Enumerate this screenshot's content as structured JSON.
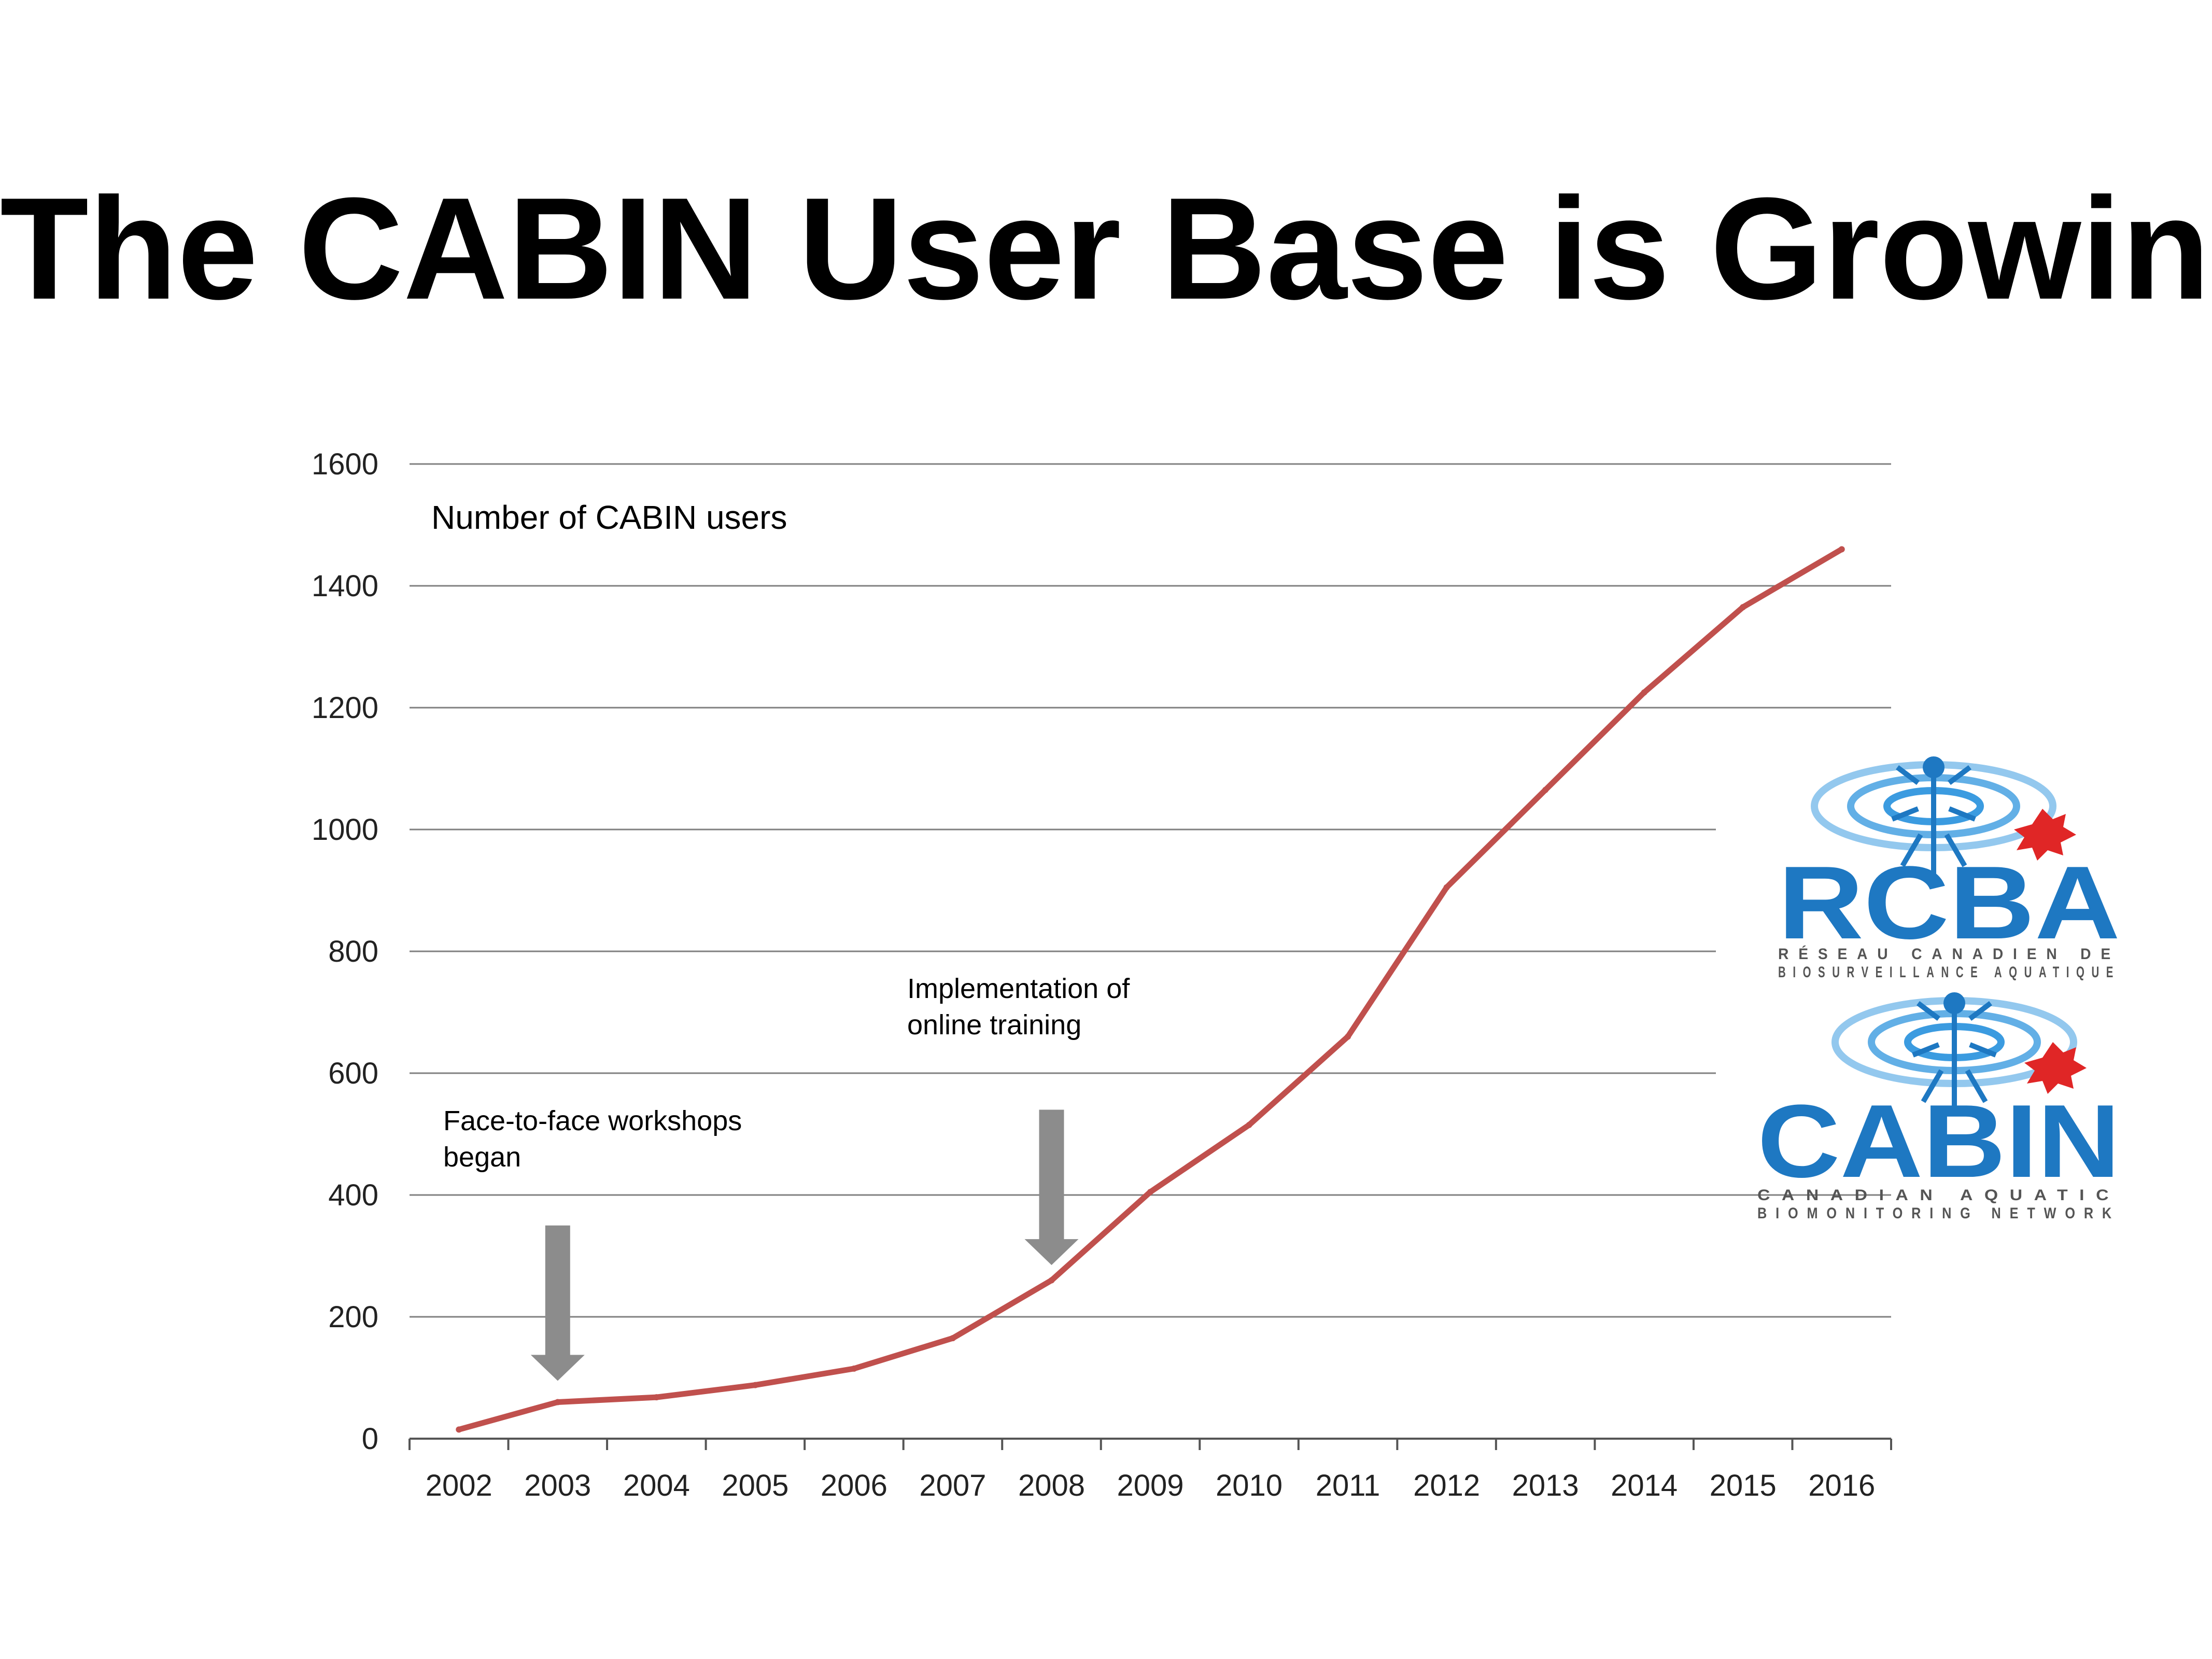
{
  "title": "The CABIN User Base is Growing",
  "colors": {
    "line": "#C0504D",
    "arrow": "#8C8C8C",
    "grid": "#808080",
    "logo_blue": "#1E78C2",
    "logo_red": "#E02626"
  },
  "chart_data": {
    "type": "line",
    "categories": [
      "2002",
      "2003",
      "2004",
      "2005",
      "2006",
      "2007",
      "2008",
      "2009",
      "2010",
      "2011",
      "2012",
      "2013",
      "2014",
      "2015",
      "2016"
    ],
    "series": [
      {
        "name": "Number of CABIN users",
        "values": [
          15,
          60,
          68,
          88,
          115,
          165,
          260,
          405,
          515,
          660,
          905,
          1065,
          1225,
          1365,
          1460
        ]
      }
    ],
    "ylim": [
      0,
      1600
    ],
    "yticks": [
      "0",
      "200",
      "400",
      "600",
      "800",
      "1000",
      "1200",
      "1400",
      "1600"
    ],
    "grid": true,
    "xlabel": "",
    "ylabel": "",
    "annotations": [
      {
        "text_lines": [
          "Face-to-face workshops",
          "began"
        ],
        "category": "2003"
      },
      {
        "text_lines": [
          "Implementation of",
          "online training"
        ],
        "category": "2008"
      }
    ]
  },
  "logos": {
    "rcba": {
      "word": "RCBA",
      "lines": [
        "RÉSEAU CANADIEN DE",
        "BIOSURVEILLANCE AQUATIQUE"
      ]
    },
    "cabin": {
      "word": "CABIN",
      "lines": [
        "CANADIAN AQUATIC",
        "BIOMONITORING NETWORK"
      ]
    }
  }
}
